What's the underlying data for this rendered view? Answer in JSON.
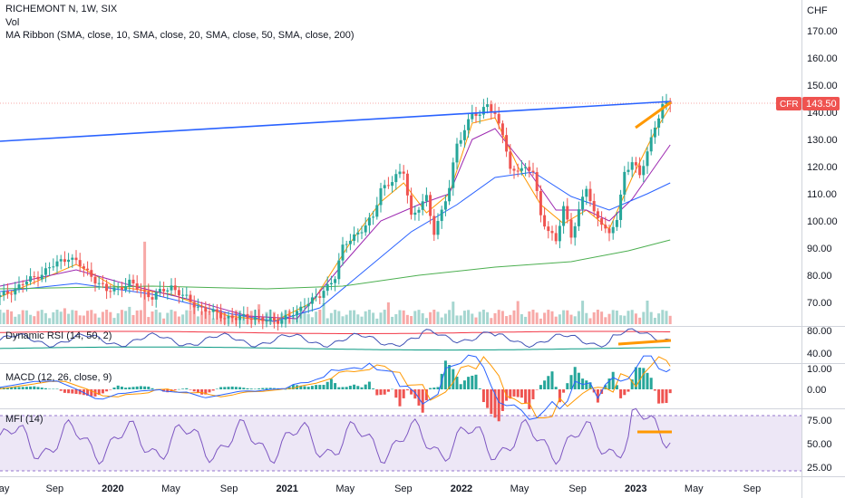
{
  "header": {
    "symbol_line": "RICHEMONT N, 1W, SIX",
    "vol_label": "Vol",
    "ribbon_label": "MA Ribbon (SMA, close, 10, SMA, close, 20, SMA, close, 50, SMA, close, 200)",
    "currency": "CHF"
  },
  "price_tag": {
    "symbol": "CFR",
    "value": "143.50"
  },
  "colors": {
    "up": "#26a69a",
    "down": "#ef5350",
    "vol_up": "#a5d6d0",
    "vol_down": "#f7a9a7",
    "sma10": "#ff9800",
    "sma20": "#9c27b0",
    "sma50": "#2962ff",
    "sma200": "#4caf50",
    "trendline": "#2962ff",
    "orange_marker": "#ff9800",
    "rsi": "#3f51b5",
    "rsi_upper": "#f23645",
    "rsi_lower": "#089981",
    "macd": "#2962ff",
    "macd_signal": "#ff9800",
    "mfi": "#7e57c2",
    "mfi_band": "#ede7f6"
  },
  "panels": {
    "rsi": {
      "label": "Dynamic RSI (14, 50, 2)",
      "ticks": [
        "80.00",
        "40.00"
      ]
    },
    "macd": {
      "label": "MACD (12, 26, close, 9)",
      "ticks": [
        "10.00",
        "0.00"
      ]
    },
    "mfi": {
      "label": "MFI (14)",
      "ticks": [
        "75.00",
        "50.00",
        "25.00"
      ]
    }
  },
  "chart_data": {
    "type": "candlestick",
    "title": "RICHEMONT N, 1W, SIX",
    "y_axis": {
      "ticks": [
        170,
        160,
        150,
        140,
        130,
        120,
        110,
        100,
        90,
        80,
        70
      ],
      "unit": "CHF",
      "ylim": [
        64,
        178
      ]
    },
    "x_axis": {
      "labels": [
        "May",
        "Sep",
        "2020",
        "May",
        "Sep",
        "2021",
        "May",
        "Sep",
        "2022",
        "May",
        "Sep",
        "2023",
        "May",
        "Sep"
      ],
      "bold_labels": [
        "2020",
        "2021",
        "2022",
        "2023"
      ]
    },
    "last_price": 143.5,
    "price_path_approx": [
      [
        0,
        72
      ],
      [
        10,
        80
      ],
      [
        18,
        87
      ],
      [
        24,
        80
      ],
      [
        28,
        74
      ],
      [
        34,
        77
      ],
      [
        40,
        72
      ],
      [
        45,
        76
      ],
      [
        50,
        70
      ],
      [
        56,
        66
      ],
      [
        62,
        64
      ],
      [
        66,
        65
      ],
      [
        70,
        63
      ],
      [
        74,
        64
      ],
      [
        78,
        66
      ],
      [
        80,
        70
      ],
      [
        84,
        72
      ],
      [
        88,
        80
      ],
      [
        90,
        90
      ],
      [
        94,
        96
      ],
      [
        98,
        101
      ],
      [
        100,
        112
      ],
      [
        104,
        116
      ],
      [
        106,
        118
      ],
      [
        108,
        102
      ],
      [
        112,
        108
      ],
      [
        114,
        96
      ],
      [
        118,
        112
      ],
      [
        120,
        128
      ],
      [
        124,
        140
      ],
      [
        126,
        138
      ],
      [
        128,
        144
      ],
      [
        130,
        139
      ],
      [
        132,
        132
      ],
      [
        134,
        118
      ],
      [
        136,
        120
      ],
      [
        140,
        118
      ],
      [
        142,
        102
      ],
      [
        146,
        92
      ],
      [
        148,
        105
      ],
      [
        150,
        95
      ],
      [
        154,
        112
      ],
      [
        156,
        103
      ],
      [
        158,
        100
      ],
      [
        160,
        94
      ],
      [
        162,
        101
      ],
      [
        164,
        118
      ],
      [
        166,
        122
      ],
      [
        168,
        116
      ],
      [
        170,
        126
      ],
      [
        172,
        135
      ],
      [
        174,
        142
      ],
      [
        176,
        143.5
      ]
    ],
    "series": [
      {
        "name": "SMA 10",
        "path_approx": [
          [
            0,
            72
          ],
          [
            20,
            84
          ],
          [
            30,
            76
          ],
          [
            45,
            73
          ],
          [
            60,
            65
          ],
          [
            72,
            63
          ],
          [
            82,
            70
          ],
          [
            92,
            92
          ],
          [
            100,
            107
          ],
          [
            106,
            114
          ],
          [
            112,
            103
          ],
          [
            118,
            110
          ],
          [
            124,
            136
          ],
          [
            130,
            138
          ],
          [
            136,
            120
          ],
          [
            142,
            106
          ],
          [
            148,
            99
          ],
          [
            154,
            104
          ],
          [
            160,
            97
          ],
          [
            166,
            116
          ],
          [
            172,
            133
          ],
          [
            176,
            142
          ]
        ]
      },
      {
        "name": "SMA 20",
        "path_approx": [
          [
            0,
            76
          ],
          [
            20,
            82
          ],
          [
            35,
            76
          ],
          [
            50,
            71
          ],
          [
            65,
            65
          ],
          [
            78,
            64
          ],
          [
            90,
            84
          ],
          [
            100,
            100
          ],
          [
            110,
            106
          ],
          [
            118,
            110
          ],
          [
            124,
            130
          ],
          [
            130,
            134
          ],
          [
            138,
            120
          ],
          [
            146,
            104
          ],
          [
            154,
            104
          ],
          [
            160,
            100
          ],
          [
            166,
            108
          ],
          [
            172,
            120
          ],
          [
            176,
            128
          ]
        ]
      },
      {
        "name": "SMA 50",
        "path_approx": [
          [
            0,
            74
          ],
          [
            20,
            77
          ],
          [
            40,
            73
          ],
          [
            60,
            66
          ],
          [
            72,
            63
          ],
          [
            84,
            68
          ],
          [
            96,
            82
          ],
          [
            108,
            96
          ],
          [
            120,
            106
          ],
          [
            130,
            116
          ],
          [
            140,
            118
          ],
          [
            150,
            109
          ],
          [
            160,
            104
          ],
          [
            170,
            110
          ],
          [
            176,
            114
          ]
        ]
      },
      {
        "name": "SMA 200",
        "path_approx": [
          [
            0,
            75
          ],
          [
            40,
            76
          ],
          [
            70,
            75
          ],
          [
            90,
            76
          ],
          [
            110,
            80
          ],
          [
            130,
            83
          ],
          [
            150,
            85
          ],
          [
            165,
            89
          ],
          [
            176,
            93
          ]
        ]
      }
    ],
    "trendline": {
      "from": [
        0,
        129
      ],
      "to": [
        176,
        144
      ]
    }
  },
  "x_label_positions_weeks": [
    0,
    16,
    33,
    50,
    67,
    84,
    101,
    118,
    135,
    152,
    169,
    186,
    203,
    220
  ]
}
